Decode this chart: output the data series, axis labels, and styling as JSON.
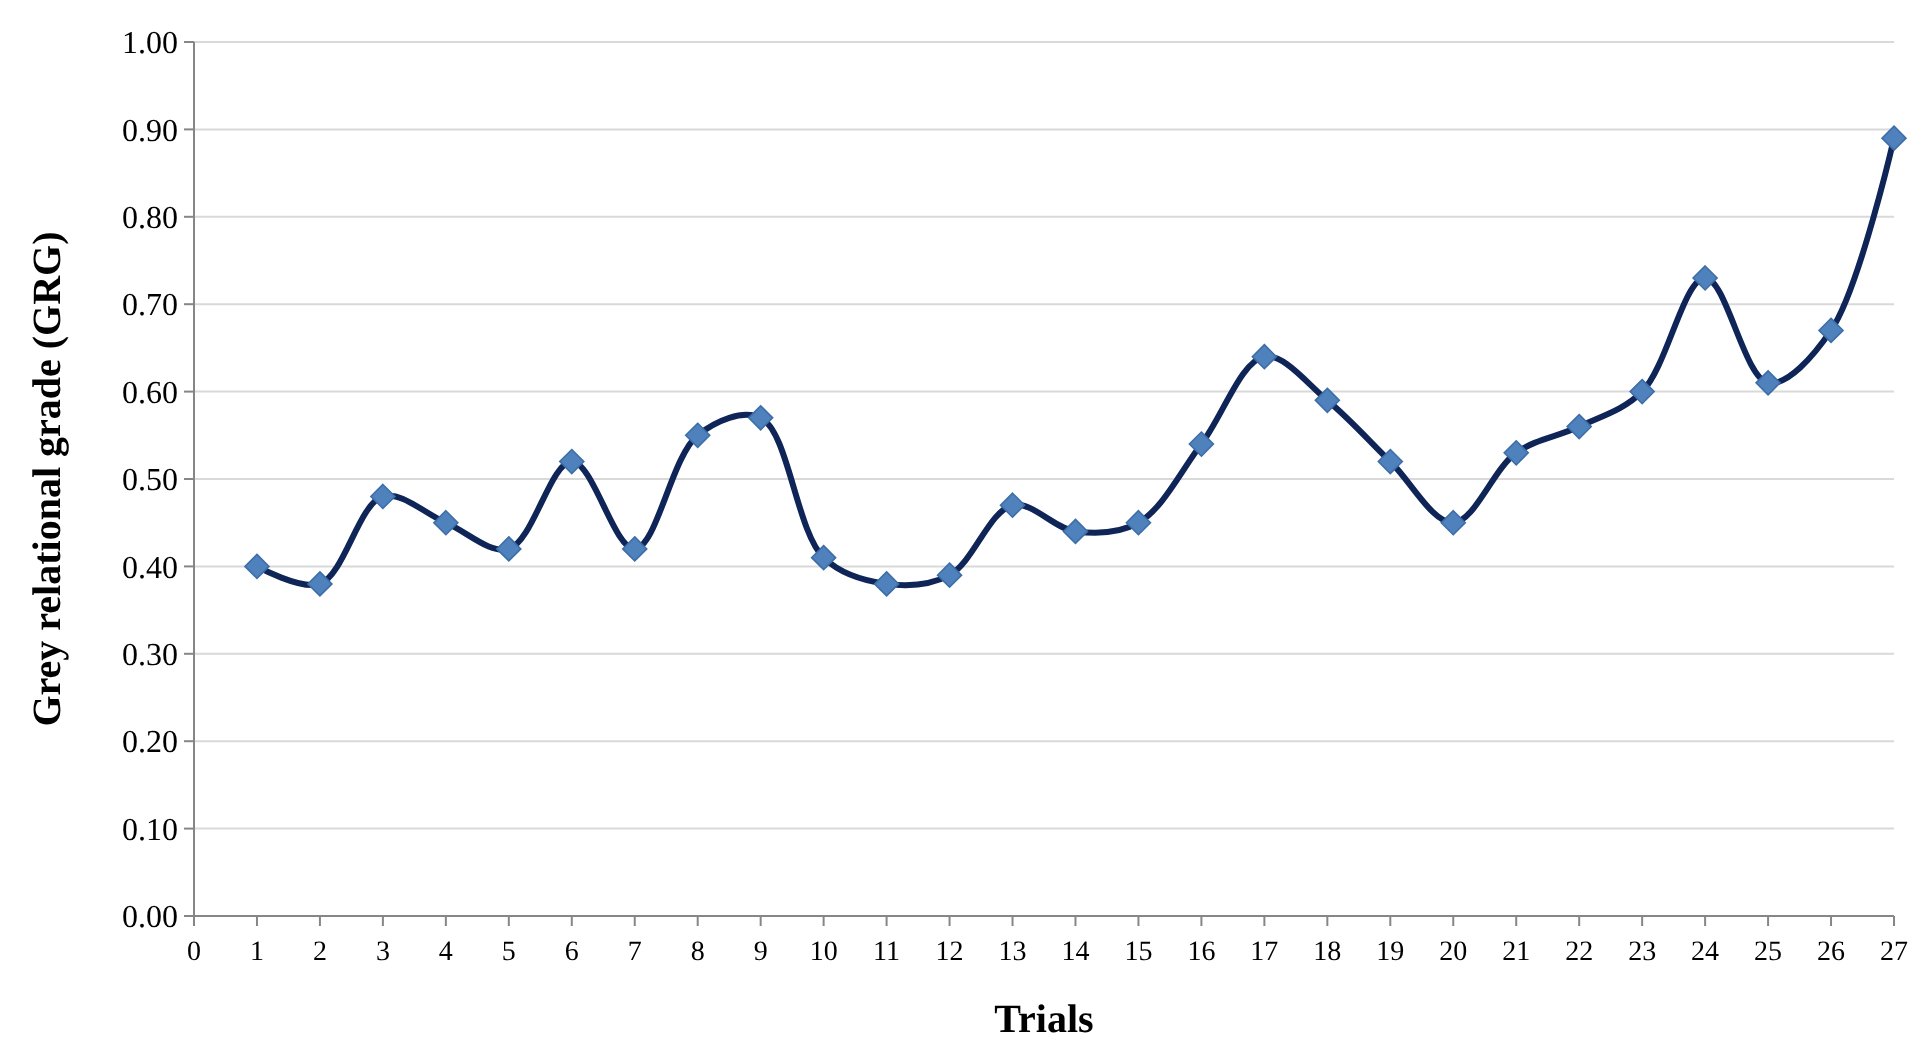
{
  "chart_data": {
    "type": "line",
    "xlabel": "Trials",
    "ylabel": "Grey relational grade (GRG)",
    "x": [
      1,
      2,
      3,
      4,
      5,
      6,
      7,
      8,
      9,
      10,
      11,
      12,
      13,
      14,
      15,
      16,
      17,
      18,
      19,
      20,
      21,
      22,
      23,
      24,
      25,
      26,
      27
    ],
    "series": [
      {
        "color": "#0f2557",
        "values": [
          0.4,
          0.38,
          0.48,
          0.45,
          0.42,
          0.52,
          0.42,
          0.55,
          0.57,
          0.41,
          0.38,
          0.39,
          0.47,
          0.44,
          0.45,
          0.54,
          0.64,
          0.59,
          0.52,
          0.45,
          0.53,
          0.56,
          0.6,
          0.73,
          0.61,
          0.67,
          0.89
        ]
      }
    ],
    "xlim": [
      0,
      27
    ],
    "xticks": [
      0,
      1,
      2,
      3,
      4,
      5,
      6,
      7,
      8,
      9,
      10,
      11,
      12,
      13,
      14,
      15,
      16,
      17,
      18,
      19,
      20,
      21,
      22,
      23,
      24,
      25,
      26,
      27
    ],
    "ylim": [
      0,
      1
    ],
    "yticks": [
      {
        "value": 0,
        "label": "0.00"
      },
      {
        "value": 0.1,
        "label": "0.10"
      },
      {
        "value": 0.2,
        "label": "0.20"
      },
      {
        "value": 0.3,
        "label": "0.30"
      },
      {
        "value": 0.4,
        "label": "0.40"
      },
      {
        "value": 0.5,
        "label": "0.50"
      },
      {
        "value": 0.6,
        "label": "0.60"
      },
      {
        "value": 0.7,
        "label": "0.70"
      },
      {
        "value": 0.8,
        "label": "0.80"
      },
      {
        "value": 0.9,
        "label": "0.90"
      },
      {
        "value": 1,
        "label": "1.00"
      }
    ],
    "grid": "y",
    "marker": "diamond",
    "line_style": "solid"
  }
}
